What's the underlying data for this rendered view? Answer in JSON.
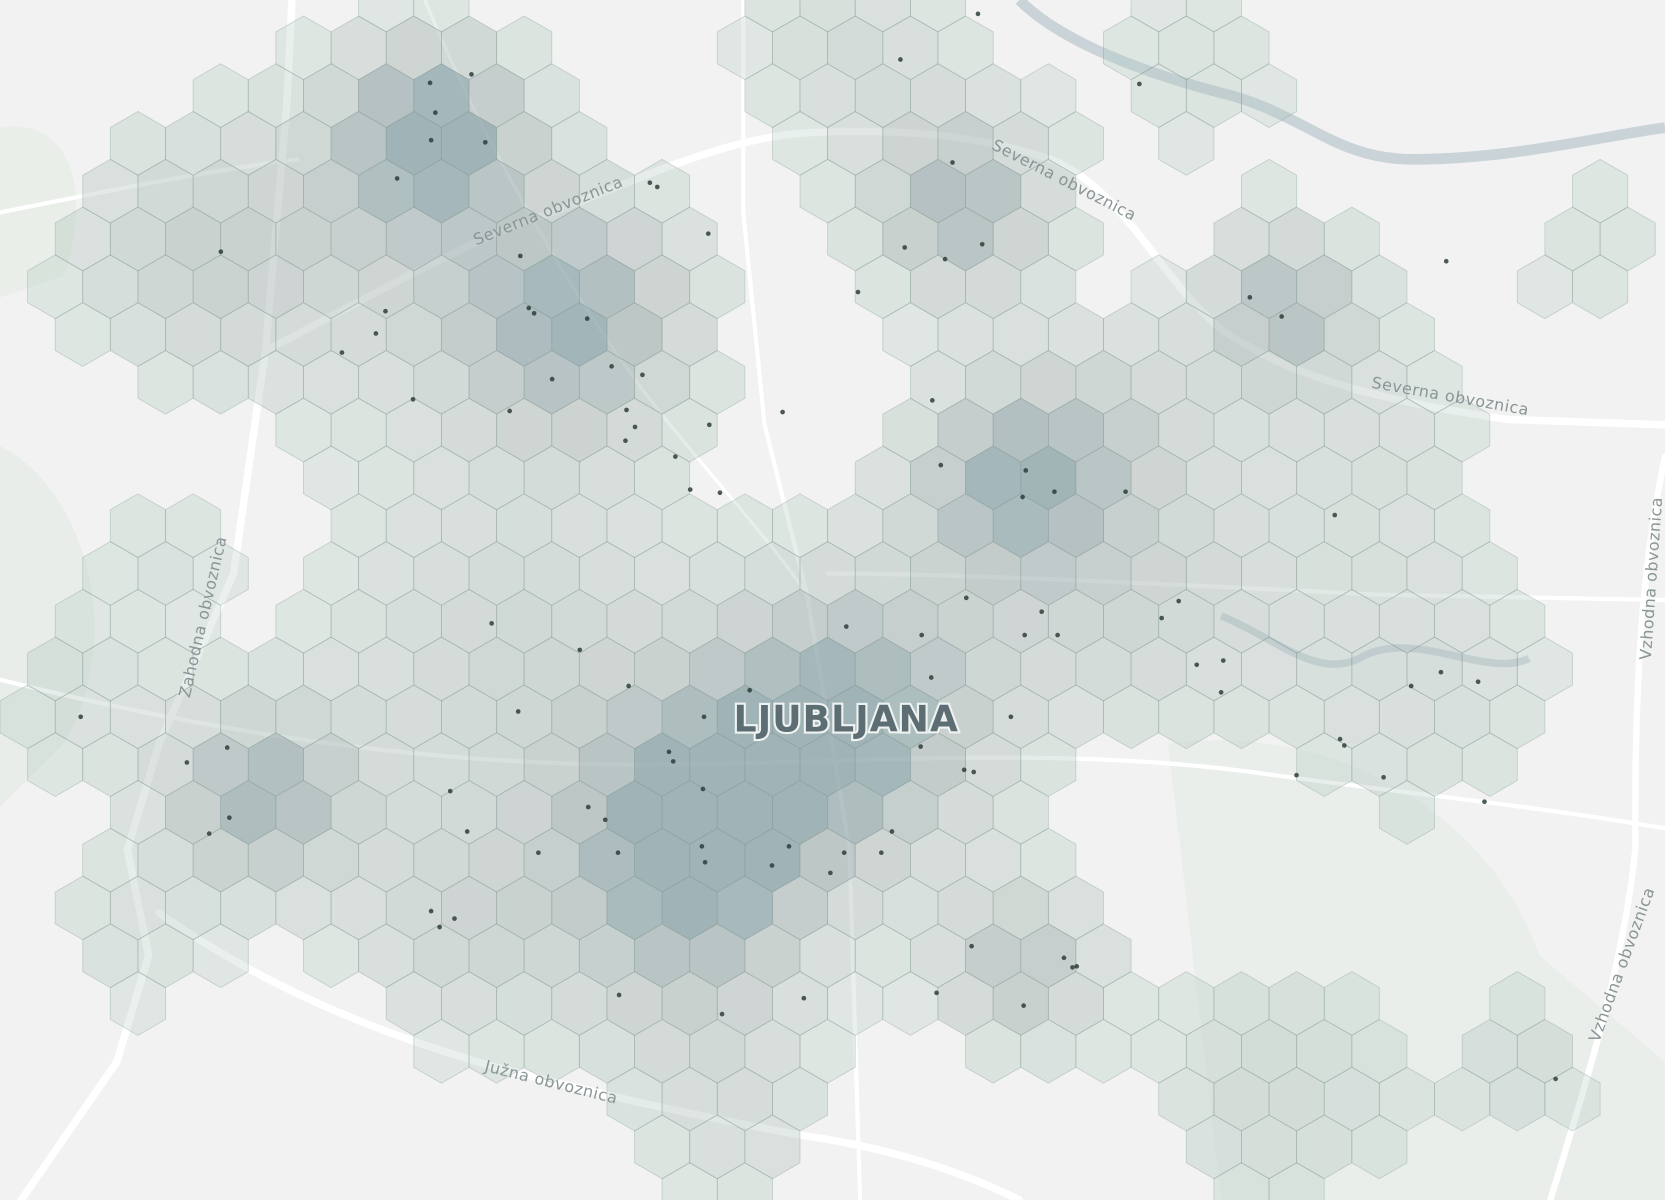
{
  "map": {
    "city_label": "LJUBLJANA",
    "road_labels": [
      "Severna obvoznica",
      "Severna obvoznica",
      "Severna obvoznica",
      "Zahodna obvoznica",
      "Južna obvoznica",
      "Vzhodna obvoznica",
      "Vzhodna obvoznica"
    ]
  }
}
